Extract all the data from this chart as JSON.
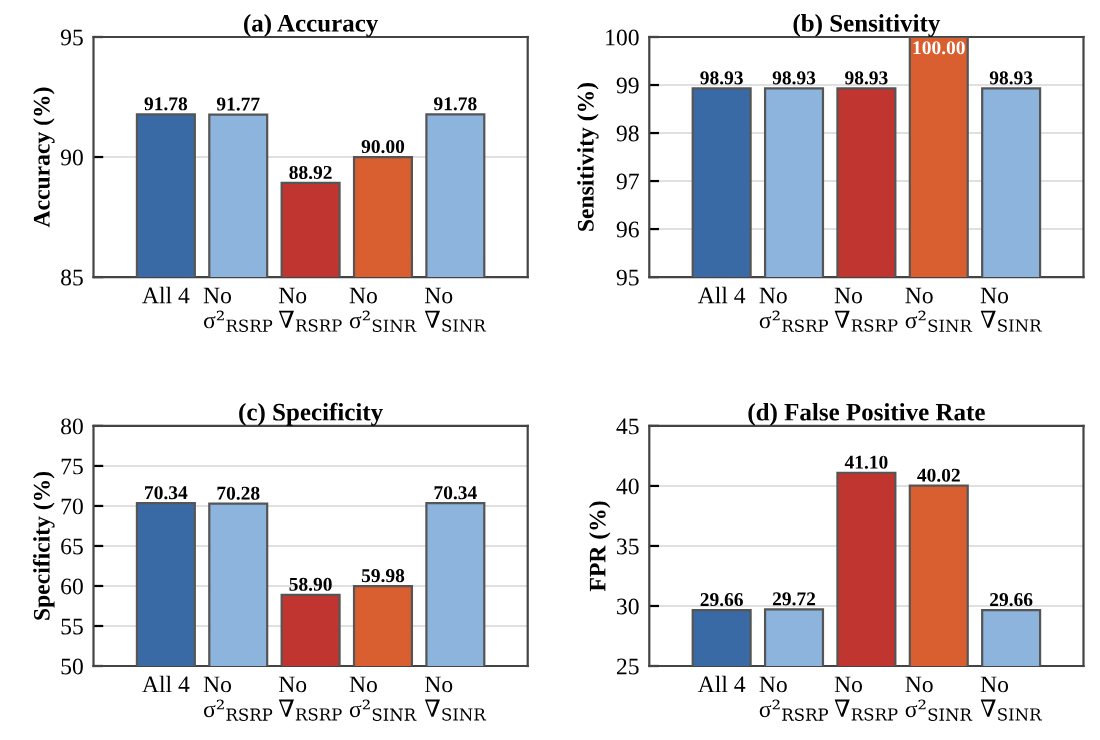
{
  "chart_data": [
    {
      "type": "bar",
      "title": "(a) Accuracy",
      "ylabel": "Accuracy (%)",
      "categories": [
        "All 4",
        "No\nσ²$_{RSRP}$",
        "No\n∇$_{RSRP}$",
        "No\nσ²$_{SINR}$",
        "No\n∇$_{SINR}$"
      ],
      "values": [
        91.78,
        91.77,
        88.92,
        90.0,
        91.78
      ],
      "value_labels": [
        "91.78",
        "91.77",
        "88.92",
        "90.00",
        "91.78"
      ],
      "colors": [
        "#3a6aa5",
        "#8db4dd",
        "#c0352f",
        "#d95f30",
        "#8db4dd"
      ],
      "ylim": [
        85,
        95
      ],
      "yticks": [
        85,
        90,
        95
      ],
      "grid": "y"
    },
    {
      "type": "bar",
      "title": "(b) Sensitivity",
      "ylabel": "Sensitivity (%)",
      "categories": [
        "All 4",
        "No\nσ²$_{RSRP}$",
        "No\n∇$_{RSRP}$",
        "No\nσ²$_{SINR}$",
        "No\n∇$_{SINR}$"
      ],
      "values": [
        98.93,
        98.93,
        98.93,
        100.0,
        98.93
      ],
      "value_labels": [
        "98.93",
        "98.93",
        "98.93",
        "100.00",
        "98.93"
      ],
      "colors": [
        "#3a6aa5",
        "#8db4dd",
        "#c0352f",
        "#d95f30",
        "#8db4dd"
      ],
      "ylim": [
        95,
        100
      ],
      "yticks": [
        95,
        96,
        97,
        98,
        99,
        100
      ],
      "grid": "y"
    },
    {
      "type": "bar",
      "title": "(c) Specificity",
      "ylabel": "Specificity (%)",
      "categories": [
        "All 4",
        "No\nσ²$_{RSRP}$",
        "No\n∇$_{RSRP}$",
        "No\nσ²$_{SINR}$",
        "No\n∇$_{SINR}$"
      ],
      "values": [
        70.34,
        70.28,
        58.9,
        59.98,
        70.34
      ],
      "value_labels": [
        "70.34",
        "70.28",
        "58.90",
        "59.98",
        "70.34"
      ],
      "colors": [
        "#3a6aa5",
        "#8db4dd",
        "#c0352f",
        "#d95f30",
        "#8db4dd"
      ],
      "ylim": [
        50,
        80
      ],
      "yticks": [
        50,
        55,
        60,
        65,
        70,
        75,
        80
      ],
      "grid": "y"
    },
    {
      "type": "bar",
      "title": "(d) False Positive Rate",
      "ylabel": "FPR (%)",
      "categories": [
        "All 4",
        "No\nσ²$_{RSRP}$",
        "No\n∇$_{RSRP}$",
        "No\nσ²$_{SINR}$",
        "No\n∇$_{SINR}$"
      ],
      "values": [
        29.66,
        29.72,
        41.1,
        40.02,
        29.66
      ],
      "value_labels": [
        "29.66",
        "29.72",
        "41.10",
        "40.02",
        "29.66"
      ],
      "colors": [
        "#3a6aa5",
        "#8db4dd",
        "#c0352f",
        "#d95f30",
        "#8db4dd"
      ],
      "ylim": [
        25,
        45
      ],
      "yticks": [
        25,
        30,
        35,
        40,
        45
      ],
      "grid": "y"
    }
  ]
}
